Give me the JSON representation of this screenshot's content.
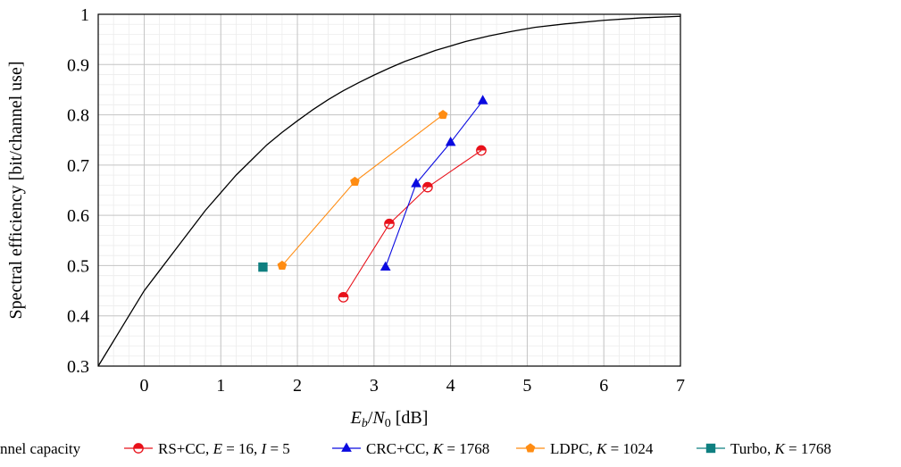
{
  "chart_data": {
    "type": "line",
    "xlabel": "E_b/N_0 [dB]",
    "ylabel": "Spectral efficiency [bit/channel use]",
    "xlim": [
      -0.6,
      7
    ],
    "ylim": [
      0.3,
      1
    ],
    "xticks": [
      "0",
      "1",
      "2",
      "3",
      "4",
      "5",
      "6",
      "7"
    ],
    "yticks": [
      "0.3",
      "0.4",
      "0.5",
      "0.6",
      "0.7",
      "0.8",
      "0.9",
      "1"
    ],
    "grid": true,
    "minor_grid": true,
    "legend_position": "bottom",
    "series": [
      {
        "name": "Channel capacity",
        "legend_text": "nnel capacity",
        "color": "#000000",
        "marker": "none",
        "points": [
          [
            -0.6,
            0.3
          ],
          [
            -0.4,
            0.35
          ],
          [
            -0.2,
            0.4
          ],
          [
            0,
            0.45
          ],
          [
            0.2,
            0.49
          ],
          [
            0.4,
            0.53
          ],
          [
            0.6,
            0.57
          ],
          [
            0.8,
            0.61
          ],
          [
            1,
            0.645
          ],
          [
            1.2,
            0.68
          ],
          [
            1.4,
            0.71
          ],
          [
            1.6,
            0.74
          ],
          [
            1.8,
            0.765
          ],
          [
            2,
            0.788
          ],
          [
            2.2,
            0.81
          ],
          [
            2.4,
            0.83
          ],
          [
            2.6,
            0.848
          ],
          [
            2.8,
            0.864
          ],
          [
            3,
            0.879
          ],
          [
            3.2,
            0.893
          ],
          [
            3.4,
            0.906
          ],
          [
            3.6,
            0.917
          ],
          [
            3.8,
            0.928
          ],
          [
            4,
            0.937
          ],
          [
            4.2,
            0.946
          ],
          [
            4.5,
            0.957
          ],
          [
            4.8,
            0.966
          ],
          [
            5.1,
            0.974
          ],
          [
            5.5,
            0.981
          ],
          [
            6,
            0.988
          ],
          [
            6.5,
            0.993
          ],
          [
            7,
            0.996
          ]
        ]
      },
      {
        "name": "RS+CC, E = 16, I = 5",
        "legend_text": "RS+CC, E = 16, I = 5",
        "color": "#e8111a",
        "marker": "half-circle",
        "points": [
          [
            2.6,
            0.437
          ],
          [
            3.2,
            0.583
          ],
          [
            3.7,
            0.656
          ],
          [
            4.4,
            0.729
          ]
        ]
      },
      {
        "name": "CRC+CC, K = 1768",
        "legend_text": "CRC+CC, K = 1768",
        "color": "#0a0ae0",
        "marker": "triangle",
        "points": [
          [
            3.15,
            0.497
          ],
          [
            3.55,
            0.663
          ],
          [
            4.0,
            0.745
          ],
          [
            4.42,
            0.828
          ]
        ]
      },
      {
        "name": "LDPC, K = 1024",
        "legend_text": "LDPC, K = 1024",
        "color": "#ff8c12",
        "marker": "pentagon",
        "points": [
          [
            1.8,
            0.5
          ],
          [
            2.75,
            0.667
          ],
          [
            3.9,
            0.8
          ]
        ]
      },
      {
        "name": "Turbo, K = 1768",
        "legend_text": "Turbo, K = 1768",
        "color": "#0f7f80",
        "marker": "square",
        "points": [
          [
            1.55,
            0.497
          ]
        ]
      }
    ]
  }
}
